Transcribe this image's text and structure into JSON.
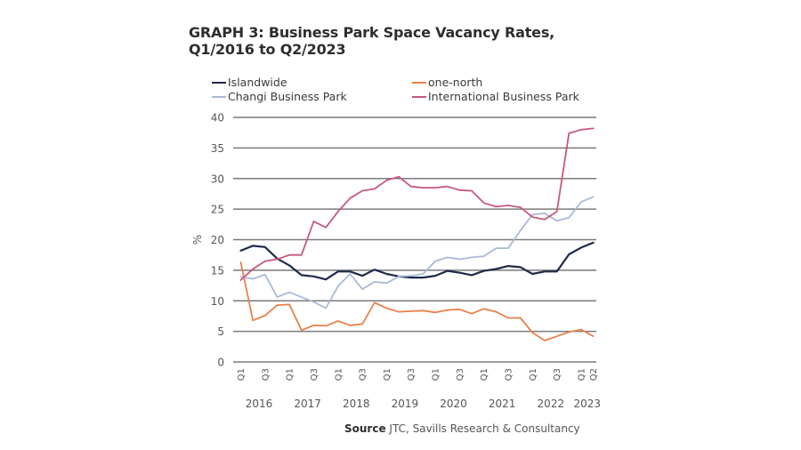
{
  "chart_data": {
    "type": "line",
    "title": "GRAPH 3: Business Park Space Vacancy Rates,",
    "subtitle": "Q1/2016 to Q2/2023",
    "xlabel": "",
    "ylabel": "%",
    "ylim": [
      0,
      40
    ],
    "yticks": [
      0,
      5,
      10,
      15,
      20,
      25,
      30,
      35,
      40
    ],
    "grid": "horizontal",
    "legend_position": "top",
    "x": [
      "Q1 2016",
      "Q2 2016",
      "Q3 2016",
      "Q4 2016",
      "Q1 2017",
      "Q2 2017",
      "Q3 2017",
      "Q4 2017",
      "Q1 2018",
      "Q2 2018",
      "Q3 2018",
      "Q4 2018",
      "Q1 2019",
      "Q2 2019",
      "Q3 2019",
      "Q4 2019",
      "Q1 2020",
      "Q2 2020",
      "Q3 2020",
      "Q4 2020",
      "Q1 2021",
      "Q2 2021",
      "Q3 2021",
      "Q4 2021",
      "Q1 2022",
      "Q2 2022",
      "Q3 2022",
      "Q4 2022",
      "Q1 2023",
      "Q2 2023"
    ],
    "quarter_tick_labels": [
      {
        "index": 0,
        "label": "Q1"
      },
      {
        "index": 2,
        "label": "Q3"
      },
      {
        "index": 4,
        "label": "Q1"
      },
      {
        "index": 6,
        "label": "Q3"
      },
      {
        "index": 8,
        "label": "Q1"
      },
      {
        "index": 10,
        "label": "Q3"
      },
      {
        "index": 12,
        "label": "Q1"
      },
      {
        "index": 14,
        "label": "Q3"
      },
      {
        "index": 16,
        "label": "Q1"
      },
      {
        "index": 18,
        "label": "Q3"
      },
      {
        "index": 20,
        "label": "Q1"
      },
      {
        "index": 22,
        "label": "Q3"
      },
      {
        "index": 24,
        "label": "Q1"
      },
      {
        "index": 26,
        "label": "Q3"
      },
      {
        "index": 28,
        "label": "Q1"
      },
      {
        "index": 29,
        "label": "Q2"
      }
    ],
    "year_labels": [
      {
        "center_index": 1.5,
        "label": "2016"
      },
      {
        "center_index": 5.5,
        "label": "2017"
      },
      {
        "center_index": 9.5,
        "label": "2018"
      },
      {
        "center_index": 13.5,
        "label": "2019"
      },
      {
        "center_index": 17.5,
        "label": "2020"
      },
      {
        "center_index": 21.5,
        "label": "2021"
      },
      {
        "center_index": 25.5,
        "label": "2022"
      },
      {
        "center_index": 28.5,
        "label": "2023"
      }
    ],
    "series": [
      {
        "name": "Islandwide",
        "color": "#1f2a4a",
        "values": [
          18.2,
          19.0,
          18.8,
          16.9,
          15.8,
          14.2,
          14.0,
          13.5,
          14.8,
          14.8,
          14.1,
          15.1,
          14.4,
          14.0,
          13.8,
          13.8,
          14.1,
          14.9,
          14.6,
          14.2,
          14.9,
          15.2,
          15.7,
          15.5,
          14.4,
          14.8,
          14.8,
          17.6,
          18.7,
          19.5
        ]
      },
      {
        "name": "one-north",
        "color": "#e8804a",
        "values": [
          16.3,
          6.8,
          7.6,
          9.3,
          9.4,
          5.2,
          6.0,
          5.9,
          6.7,
          6.0,
          6.2,
          9.7,
          8.8,
          8.2,
          8.3,
          8.4,
          8.1,
          8.5,
          8.6,
          7.9,
          8.7,
          8.2,
          7.2,
          7.2,
          4.8,
          3.5,
          4.2,
          4.9,
          5.3,
          4.2
        ]
      },
      {
        "name": "Changi Business Park",
        "color": "#a9b9d9",
        "values": [
          13.9,
          13.6,
          14.3,
          10.6,
          11.4,
          10.6,
          9.8,
          8.8,
          12.4,
          14.4,
          11.9,
          13.1,
          12.9,
          14.0,
          14.1,
          14.4,
          16.5,
          17.1,
          16.8,
          17.1,
          17.3,
          18.6,
          18.6,
          21.5,
          24.1,
          24.3,
          23.1,
          23.6,
          26.2,
          27.0
        ]
      },
      {
        "name": "International Business Park",
        "color": "#c8587a",
        "values": [
          13.4,
          15.2,
          16.5,
          16.8,
          17.5,
          17.5,
          23.0,
          22.0,
          24.6,
          26.8,
          28.0,
          28.3,
          29.7,
          30.3,
          28.7,
          28.5,
          28.5,
          28.7,
          28.1,
          28.0,
          26.0,
          25.4,
          25.6,
          25.3,
          23.7,
          23.3,
          24.6,
          37.4,
          38.0,
          38.2
        ]
      }
    ]
  },
  "legend": {
    "items": [
      {
        "label": "Islandwide",
        "color": "#1f2a4a"
      },
      {
        "label": "one-north",
        "color": "#e8804a"
      },
      {
        "label": "Changi Business Park",
        "color": "#a9b9d9"
      },
      {
        "label": "International Business Park",
        "color": "#c8587a"
      }
    ]
  },
  "source": {
    "label": "Source",
    "text": " JTC, Savills Research & Consultancy"
  },
  "colors": {
    "grid": "#7a7a7a",
    "text": "#555555",
    "title": "#2e2e2e"
  }
}
